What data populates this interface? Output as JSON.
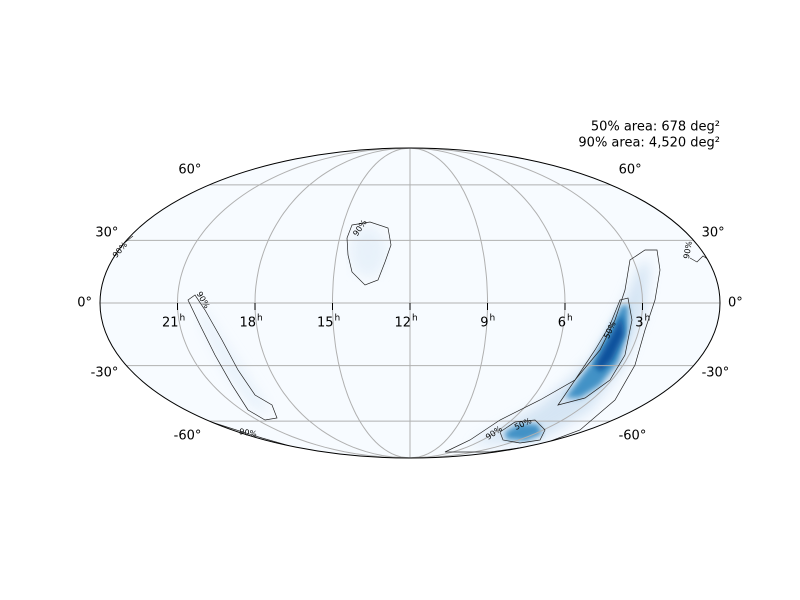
{
  "map": {
    "projection": "mollweide",
    "annotations": [
      "50% area: 678 deg²",
      "90% area: 4,520 deg²"
    ],
    "ra_ticks": [
      {
        "value": 21,
        "label": "21",
        "unit": "h"
      },
      {
        "value": 18,
        "label": "18",
        "unit": "h"
      },
      {
        "value": 15,
        "label": "15",
        "unit": "h"
      },
      {
        "value": 12,
        "label": "12",
        "unit": "h"
      },
      {
        "value": 9,
        "label": "9",
        "unit": "h"
      },
      {
        "value": 6,
        "label": "6",
        "unit": "h"
      },
      {
        "value": 3,
        "label": "3",
        "unit": "h"
      }
    ],
    "dec_ticks": [
      {
        "value": 60,
        "label": "60°"
      },
      {
        "value": 30,
        "label": "30°"
      },
      {
        "value": 0,
        "label": "0°"
      },
      {
        "value": -30,
        "label": "-30°"
      },
      {
        "value": -60,
        "label": "-60°"
      }
    ],
    "contour_labels": [
      "50%",
      "90%"
    ]
  }
}
